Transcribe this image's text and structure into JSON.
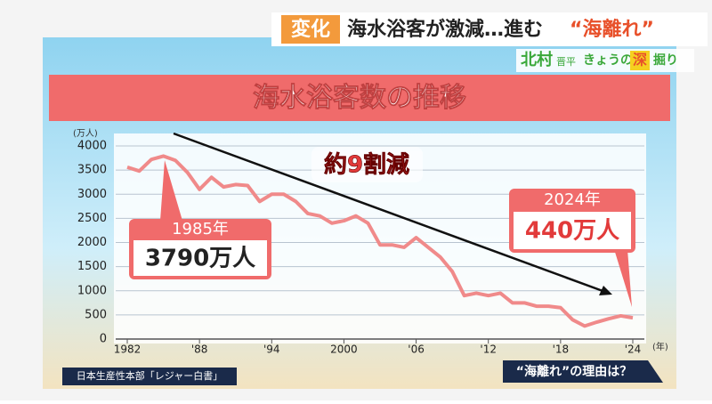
{
  "header": {
    "tag": "変化",
    "headline": "海水浴客が激減…進む",
    "headline_quote": "“海離れ”",
    "presenter": "北村",
    "presenter_given": "晋平",
    "corner": "きょうの",
    "corner_mark": "深",
    "corner_end": "掘り"
  },
  "chart_data": {
    "type": "line",
    "title": "海水浴客数の推移",
    "y_unit": "(万人)",
    "x_unit": "(年)",
    "x": [
      1982,
      1983,
      1984,
      1985,
      1986,
      1987,
      1988,
      1989,
      1990,
      1991,
      1992,
      1993,
      1994,
      1995,
      1996,
      1997,
      1998,
      1999,
      2000,
      2001,
      2002,
      2003,
      2004,
      2005,
      2006,
      2007,
      2008,
      2009,
      2010,
      2011,
      2012,
      2013,
      2014,
      2015,
      2016,
      2017,
      2018,
      2019,
      2020,
      2021,
      2022,
      2023,
      2024
    ],
    "values": [
      3560,
      3480,
      3720,
      3790,
      3700,
      3450,
      3100,
      3350,
      3150,
      3200,
      3180,
      2850,
      3000,
      3000,
      2850,
      2600,
      2550,
      2400,
      2450,
      2550,
      2400,
      1950,
      1950,
      1900,
      2100,
      1900,
      1700,
      1400,
      900,
      950,
      900,
      950,
      750,
      750,
      680,
      680,
      650,
      400,
      270,
      350,
      420,
      480,
      440
    ],
    "color": "#f08a8a",
    "xlim": [
      1982,
      2024
    ],
    "xticks": [
      1982,
      {
        "value": 1988,
        "label": "'88"
      },
      {
        "value": 1994,
        "label": "'94"
      },
      2000,
      {
        "value": 2006,
        "label": "'06"
      },
      {
        "value": 2012,
        "label": "'12"
      },
      {
        "value": 2018,
        "label": "'18"
      },
      {
        "value": 2024,
        "label": "'24"
      }
    ],
    "ylim": [
      0,
      4000
    ],
    "yticks": [
      0,
      500,
      1000,
      1500,
      2000,
      2500,
      3000,
      3500,
      4000
    ],
    "grid": true,
    "annotations": {
      "trend": "約9割減",
      "start_year": "1985年",
      "start_value": "3790万人",
      "end_year": "2024年",
      "end_value": "440万人"
    }
  },
  "source": "日本生産性本部「レジャー白書」",
  "footer": "“海離れ”の理由は？"
}
